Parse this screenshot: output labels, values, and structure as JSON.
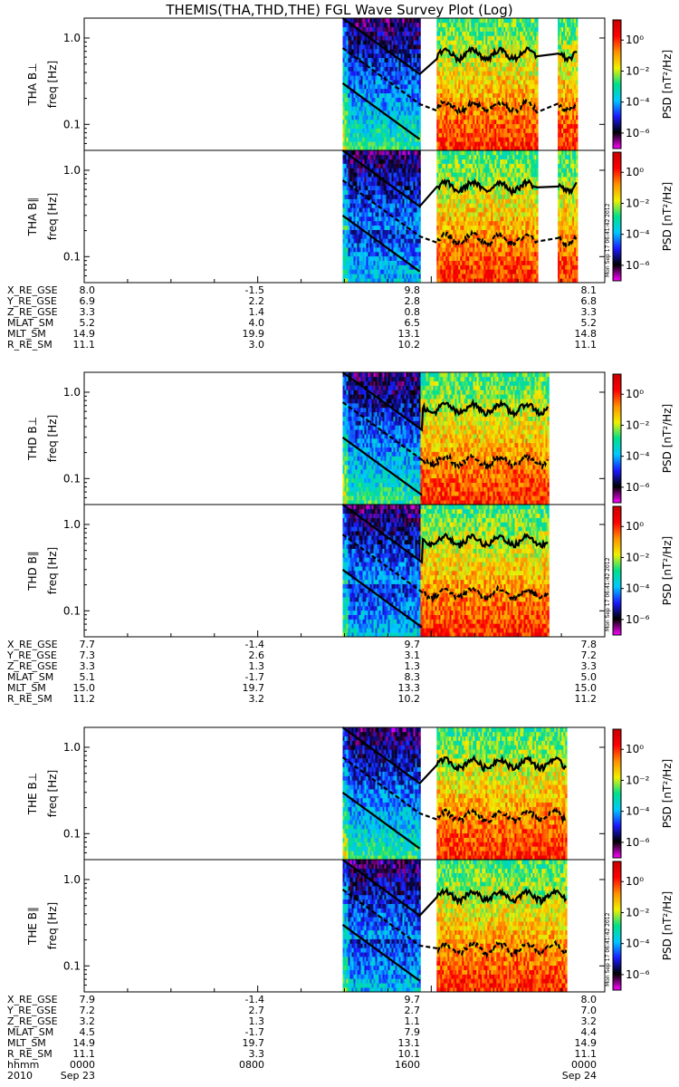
{
  "figure": {
    "title": "THEMIS(THA,THD,THE) FGL Wave Survey Plot (Log)",
    "stamp": "Mon Sep 17 06:41:42 2012"
  },
  "colorbar": {
    "label": "PSD [nT²/Hz]",
    "ticks": [
      "10⁰",
      "10⁻²",
      "10⁻⁴",
      "10⁻⁶"
    ],
    "tick_values": [
      0,
      -2,
      -4,
      -6
    ],
    "range_log": [
      -7,
      1.3
    ],
    "stops": [
      "#ff00ff",
      "#000000",
      "#1a1aff",
      "#00c8ff",
      "#00e08a",
      "#f0f000",
      "#ff9000",
      "#ff0000",
      "#c80000"
    ]
  },
  "chart_data": {
    "type": "heatmap",
    "x_time_range": [
      "2010-09-23 00:00",
      "2010-09-24 00:00"
    ],
    "x_ticks": [
      "0000",
      "0800",
      "1600",
      "0000"
    ],
    "x_tick_dates": [
      "2010 Sep 23",
      "",
      "",
      "Sep 24"
    ],
    "y_scale": "log",
    "y_range_hz": [
      0.05,
      1.7
    ],
    "y_tick_labels": [
      "1.0",
      "0.1"
    ],
    "y_tick_values": [
      1.0,
      0.1
    ],
    "y_axis_label": "freq [Hz]",
    "probes": [
      {
        "name": "THA",
        "panels": [
          {
            "label": "THA B⊥",
            "component": "perp",
            "data_intervals": [
              [
                "11:55",
                "15:30"
              ],
              [
                "16:15",
                "20:55"
              ],
              [
                "21:50",
                "22:45"
              ]
            ]
          },
          {
            "label": "THA B∥",
            "component": "par",
            "data_intervals": [
              [
                "11:55",
                "15:30"
              ],
              [
                "16:15",
                "20:55"
              ],
              [
                "21:50",
                "22:45"
              ]
            ]
          }
        ],
        "ephemeris_rows": [
          {
            "name": "X_RE_GSE",
            "values": [
              "8.0",
              "-1.5",
              "9.8",
              "8.1"
            ]
          },
          {
            "name": "Y_RE_GSE",
            "values": [
              "6.9",
              "2.2",
              "2.8",
              "6.8"
            ]
          },
          {
            "name": "Z_RE_GSE",
            "values": [
              "3.3",
              "1.4",
              "0.8",
              "3.3"
            ]
          },
          {
            "name": "MLAT_SM",
            "values": [
              "5.2",
              "4.0",
              "6.5",
              "5.2"
            ]
          },
          {
            "name": "MLT_SM",
            "values": [
              "14.9",
              "19.9",
              "13.1",
              "14.8"
            ]
          },
          {
            "name": "R_RE_SM",
            "values": [
              "11.1",
              "3.0",
              "10.2",
              "11.1"
            ]
          }
        ]
      },
      {
        "name": "THD",
        "panels": [
          {
            "label": "THD B⊥",
            "component": "perp",
            "data_intervals": [
              [
                "11:55",
                "21:25"
              ]
            ]
          },
          {
            "label": "THD B∥",
            "component": "par",
            "data_intervals": [
              [
                "11:55",
                "21:25"
              ]
            ]
          }
        ],
        "ephemeris_rows": [
          {
            "name": "X_RE_GSE",
            "values": [
              "7.7",
              "-1.4",
              "9.7",
              "7.8"
            ]
          },
          {
            "name": "Y_RE_GSE",
            "values": [
              "7.3",
              "2.6",
              "3.1",
              "7.2"
            ]
          },
          {
            "name": "Z_RE_GSE",
            "values": [
              "3.3",
              "1.3",
              "1.3",
              "3.3"
            ]
          },
          {
            "name": "MLAT_SM",
            "values": [
              "5.1",
              "-1.7",
              "8.3",
              "5.0"
            ]
          },
          {
            "name": "MLT_SM",
            "values": [
              "15.0",
              "19.7",
              "13.3",
              "15.0"
            ]
          },
          {
            "name": "R_RE_SM",
            "values": [
              "11.2",
              "3.2",
              "10.2",
              "11.2"
            ]
          }
        ]
      },
      {
        "name": "THE",
        "panels": [
          {
            "label": "THE B⊥",
            "component": "perp",
            "data_intervals": [
              [
                "11:55",
                "15:30"
              ],
              [
                "16:15",
                "22:15"
              ]
            ]
          },
          {
            "label": "THE B∥",
            "component": "par",
            "data_intervals": [
              [
                "11:55",
                "15:30"
              ],
              [
                "16:15",
                "22:15"
              ]
            ]
          }
        ],
        "ephemeris_rows": [
          {
            "name": "X_RE_GSE",
            "values": [
              "7.9",
              "-1.4",
              "9.7",
              "8.0"
            ]
          },
          {
            "name": "Y_RE_GSE",
            "values": [
              "7.2",
              "2.7",
              "2.7",
              "7.0"
            ]
          },
          {
            "name": "Z_RE_GSE",
            "values": [
              "3.2",
              "1.3",
              "1.1",
              "3.2"
            ]
          },
          {
            "name": "MLAT_SM",
            "values": [
              "4.5",
              "-1.7",
              "7.9",
              "4.4"
            ]
          },
          {
            "name": "MLT_SM",
            "values": [
              "14.9",
              "19.7",
              "13.1",
              "14.9"
            ]
          },
          {
            "name": "R_RE_SM",
            "values": [
              "11.1",
              "3.3",
              "10.1",
              "11.1"
            ]
          }
        ]
      }
    ],
    "footer_rows": [
      {
        "name": "hhmm",
        "values": [
          "0000",
          "0800",
          "1600",
          "0000"
        ]
      },
      {
        "name": "2010",
        "values": [
          "Sep 23",
          "",
          "",
          "Sep 24"
        ]
      }
    ]
  }
}
